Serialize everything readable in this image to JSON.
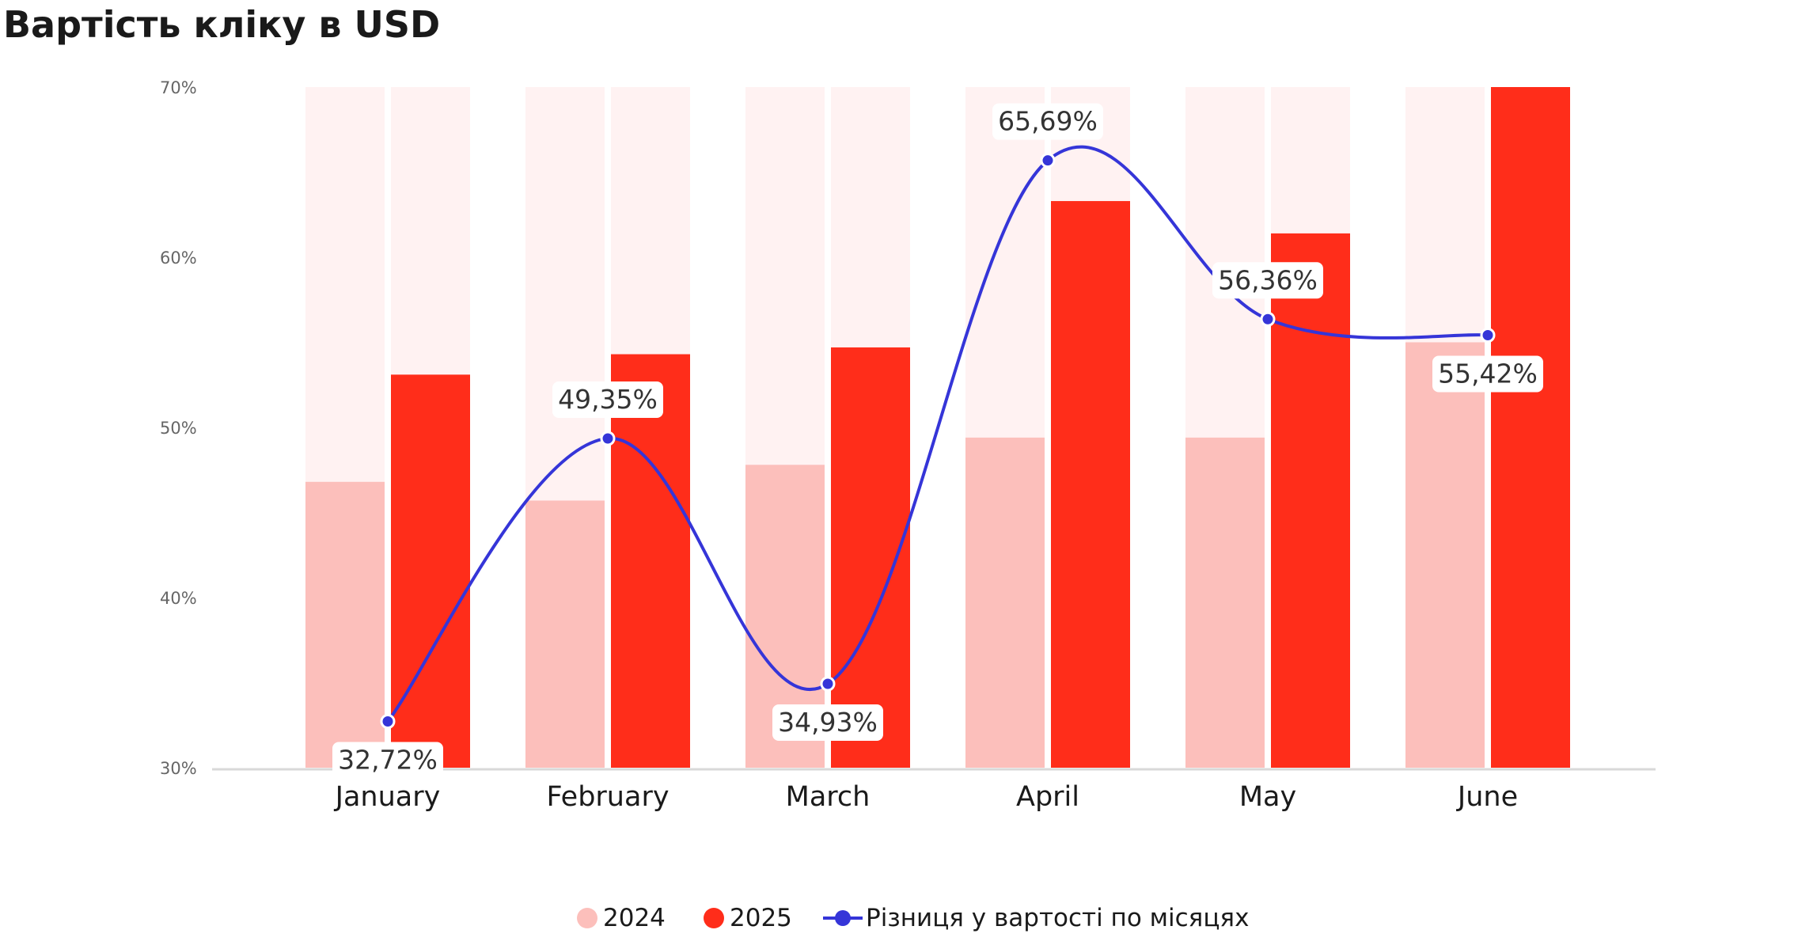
{
  "chart_data": {
    "type": "bar",
    "title": "Вартість кліку в USD",
    "categories": [
      "January",
      "February",
      "March",
      "April",
      "May",
      "June"
    ],
    "ylim": [
      30,
      70
    ],
    "yticks": [
      "30%",
      "40%",
      "50%",
      "60%",
      "70%"
    ],
    "series": [
      {
        "name": "2024",
        "kind": "bar",
        "color": "#fcbfbb",
        "values": [
          46.8,
          45.7,
          47.8,
          49.4,
          49.4,
          55.0
        ]
      },
      {
        "name": "2025",
        "kind": "bar",
        "color": "#ff2d1a",
        "values": [
          53.1,
          54.3,
          54.7,
          63.3,
          61.4,
          70.0
        ]
      },
      {
        "name": "Різниця у вартості по місяцях",
        "kind": "line",
        "color": "#3535d8",
        "values": [
          32.72,
          49.35,
          34.93,
          65.69,
          56.36,
          55.42
        ],
        "labels": [
          "32,72%",
          "49,35%",
          "34,93%",
          "65,69%",
          "56,36%",
          "55,42%"
        ]
      }
    ],
    "legend_position": "bottom-center",
    "background_bar_color": "#fff2f2",
    "grid": false
  }
}
